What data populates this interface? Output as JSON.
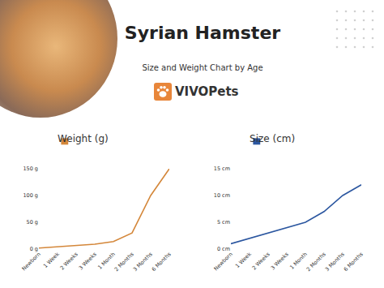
{
  "header": {
    "title": "Syrian Hamster",
    "subtitle": "Size and Weight Chart by Age",
    "logo": "VIVOPets"
  },
  "chart_data": [
    {
      "type": "line",
      "title": "Weight (g)",
      "categories": [
        "Newborn",
        "1 Week",
        "2 Weeks",
        "3 Weeks",
        "1 Month",
        "2 Months",
        "3 Months",
        "6 Months"
      ],
      "values": [
        2,
        4,
        6,
        9,
        14,
        30,
        100,
        150
      ],
      "color": "#d4873a",
      "ylim": [
        0,
        150
      ],
      "yticks": [
        {
          "value": 0,
          "label": "0 g"
        },
        {
          "value": 50,
          "label": "50 g"
        },
        {
          "value": 100,
          "label": "100 g"
        },
        {
          "value": 150,
          "label": "150 g"
        }
      ],
      "grid": false
    },
    {
      "type": "line",
      "title": "Size (cm)",
      "categories": [
        "Newborn",
        "1 Week",
        "2 Weeks",
        "3 Weeks",
        "1 Month",
        "2 Months",
        "3 Months",
        "6 Months"
      ],
      "values": [
        1,
        2,
        3,
        4,
        5,
        7,
        10,
        12
      ],
      "color": "#2c57a0",
      "ylim": [
        0,
        15
      ],
      "yticks": [
        {
          "value": 0,
          "label": "0 cm"
        },
        {
          "value": 5,
          "label": "5 cm"
        },
        {
          "value": 10,
          "label": "10 cm"
        },
        {
          "value": 15,
          "label": "15 cm"
        }
      ],
      "grid": false
    }
  ]
}
